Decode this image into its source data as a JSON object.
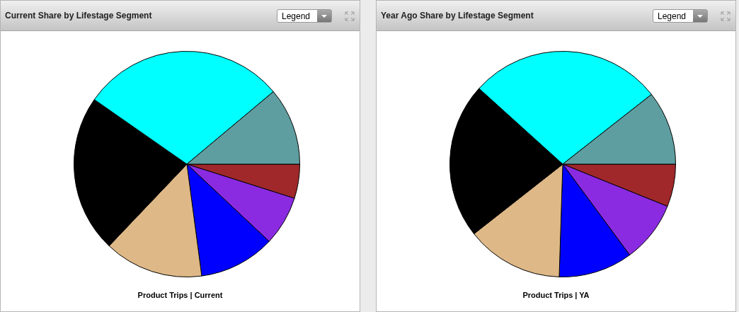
{
  "chart_data": [
    {
      "type": "pie",
      "title": "Current Share by Lifestage Segment",
      "xlabel": "Product Trips | Current",
      "annotations": [
        "Legend"
      ],
      "legend": false,
      "categories": [
        null,
        null,
        null,
        null,
        null,
        null,
        null
      ],
      "values": [
        4.9,
        7.1,
        10.9,
        14.2,
        22.6,
        29.2,
        11.1
      ],
      "colors": [
        "#a0282a",
        "#8a2be2",
        "#0000ff",
        "#deb887",
        "#000000",
        "#00ffff",
        "#5f9ea0"
      ]
    },
    {
      "type": "pie",
      "title": "Year Ago Share by Lifestage Segment",
      "xlabel": "Product Trips | YA",
      "annotations": [
        "Legend"
      ],
      "legend": false,
      "categories": [
        null,
        null,
        null,
        null,
        null,
        null,
        null
      ],
      "values": [
        6.1,
        8.8,
        10.6,
        13.9,
        22.3,
        27.7,
        10.6
      ],
      "colors": [
        "#a0282a",
        "#8a2be2",
        "#0000ff",
        "#deb887",
        "#000000",
        "#00ffff",
        "#5f9ea0"
      ]
    }
  ]
}
